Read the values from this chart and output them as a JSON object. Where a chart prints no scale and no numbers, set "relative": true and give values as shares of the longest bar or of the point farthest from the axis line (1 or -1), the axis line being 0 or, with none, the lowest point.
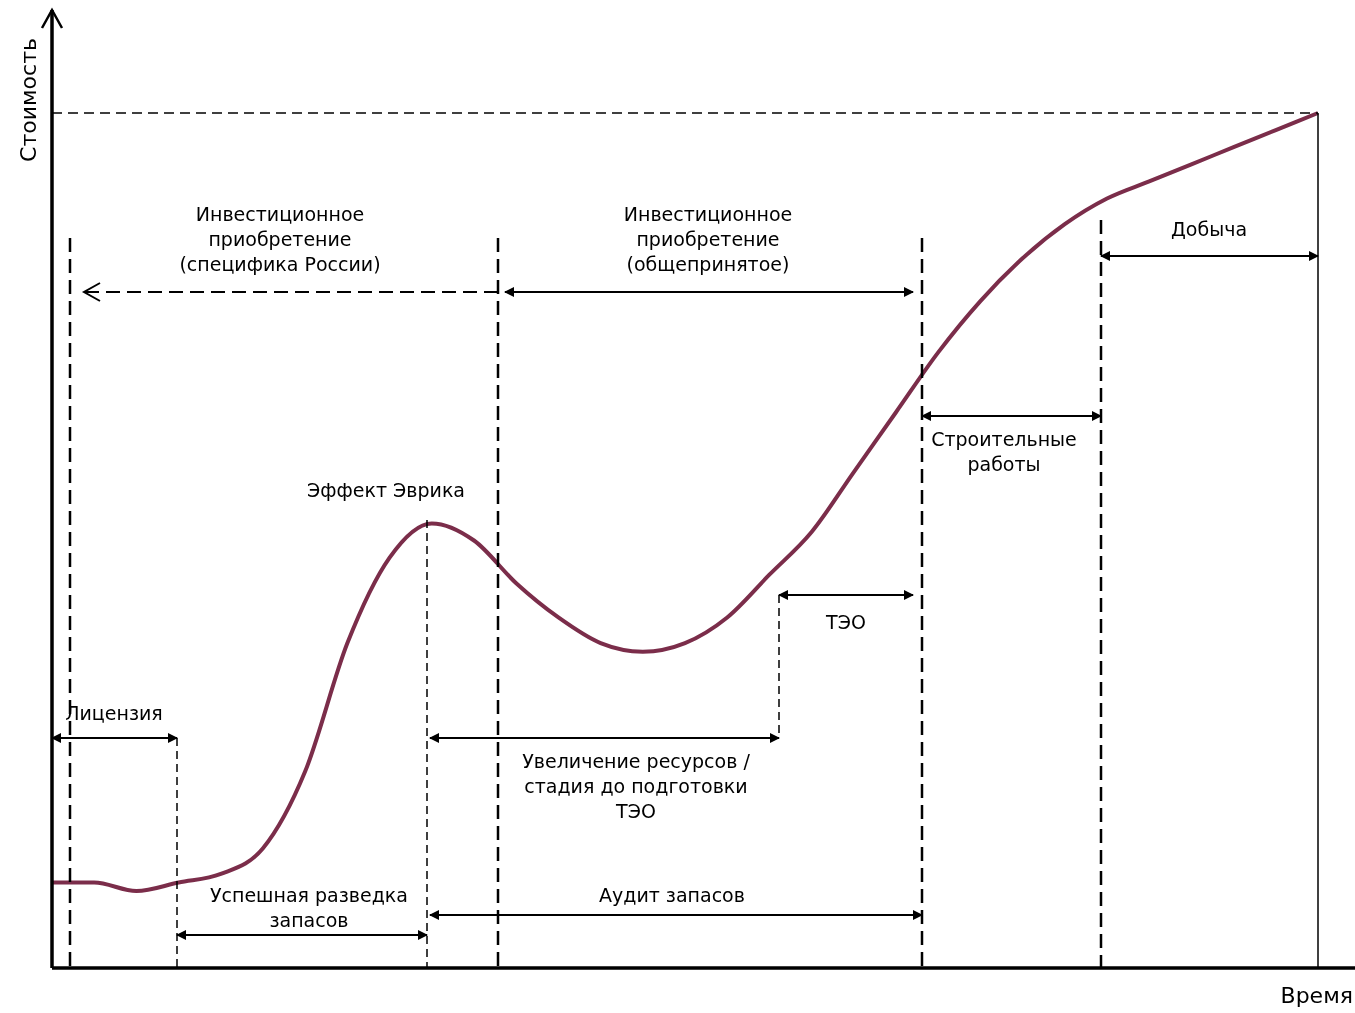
{
  "chart_data": {
    "type": "line",
    "relative": true,
    "tick_labels": false,
    "color": "#7b2d4a",
    "xlabel": "Время",
    "ylabel": "Стоимость",
    "categories": [
      null,
      null,
      null,
      null,
      null,
      null,
      null,
      null,
      null,
      null,
      null,
      null,
      null,
      null,
      null,
      null,
      null,
      null,
      null,
      null,
      null,
      null,
      null,
      null,
      null,
      null,
      null,
      null,
      null,
      null,
      null
    ],
    "values": [
      0.1,
      0.1,
      0.09,
      0.1,
      0.11,
      0.14,
      0.23,
      0.38,
      0.48,
      0.52,
      0.5,
      0.45,
      0.41,
      0.38,
      0.37,
      0.38,
      0.41,
      0.46,
      0.51,
      0.58,
      0.65,
      0.72,
      0.78,
      0.83,
      0.87,
      0.9,
      0.92,
      0.94,
      0.96,
      0.98,
      1
    ],
    "ref_lines": [
      {
        "axis": "y",
        "value": 1,
        "line_style": "dashed"
      }
    ],
    "annotations": [
      "Инвестиционное\nприобретение\n(специфика России)",
      "Инвестиционное\nприобретение\n(общепринятое)",
      "Добыча",
      "Строительные\nработы",
      "Эффект Эврика",
      "ТЭО",
      "Лицензия",
      "Увеличение ресурсов /\nстадия до подготовки\nТЭО",
      "Успешная разведка\nзапасов",
      "Аудит запасов"
    ]
  }
}
